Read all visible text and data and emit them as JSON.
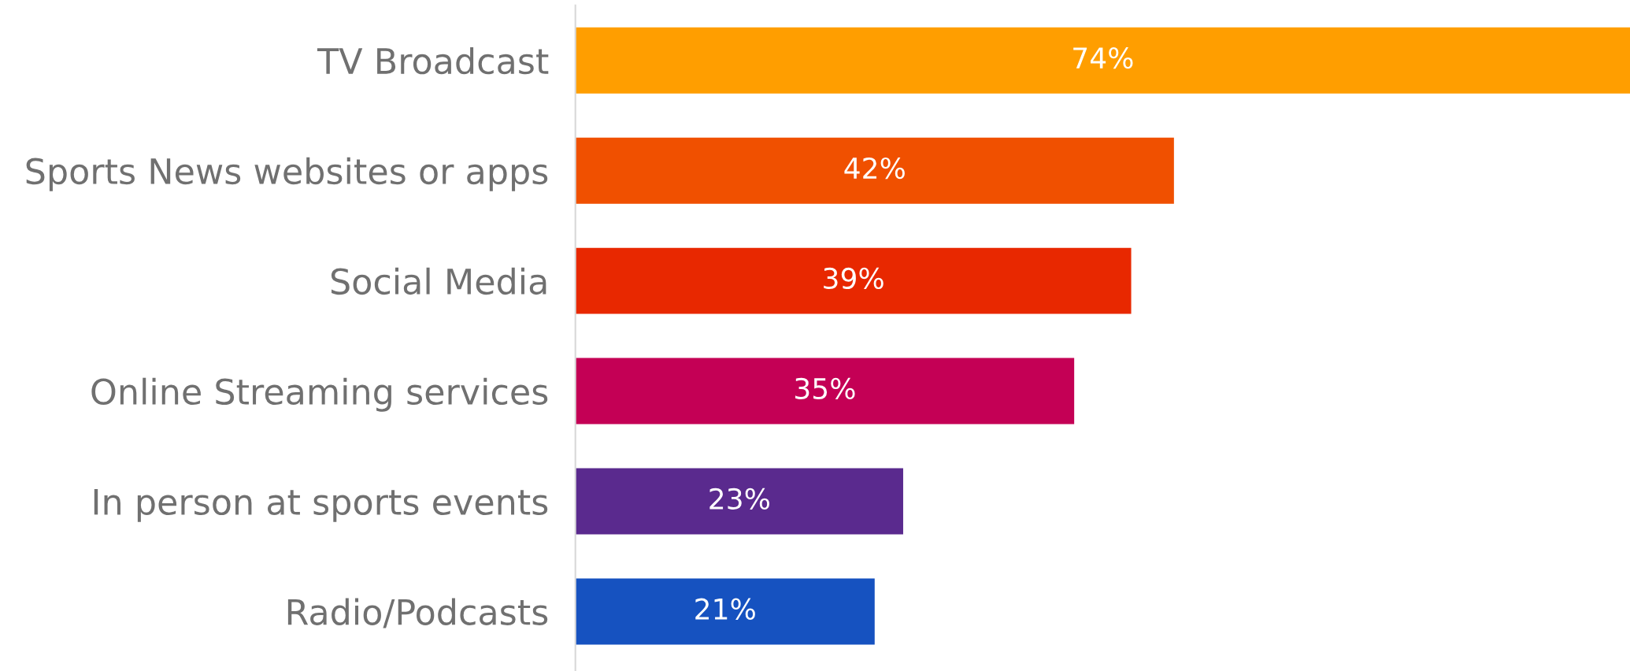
{
  "chart_data": {
    "type": "bar",
    "orientation": "horizontal",
    "categories": [
      "TV Broadcast",
      "Sports News websites or apps",
      "Social Media",
      "Online Streaming services",
      "In person at sports events",
      "Radio/Podcasts"
    ],
    "values": [
      74,
      42,
      39,
      35,
      23,
      21
    ],
    "colors": [
      "#ff9e00",
      "#f05000",
      "#e82800",
      "#c40055",
      "#5a2a8e",
      "#1652c0"
    ],
    "value_labels": [
      "74%",
      "42%",
      "39%",
      "35%",
      "23%",
      "21%"
    ],
    "grid": false,
    "legend": false
  }
}
